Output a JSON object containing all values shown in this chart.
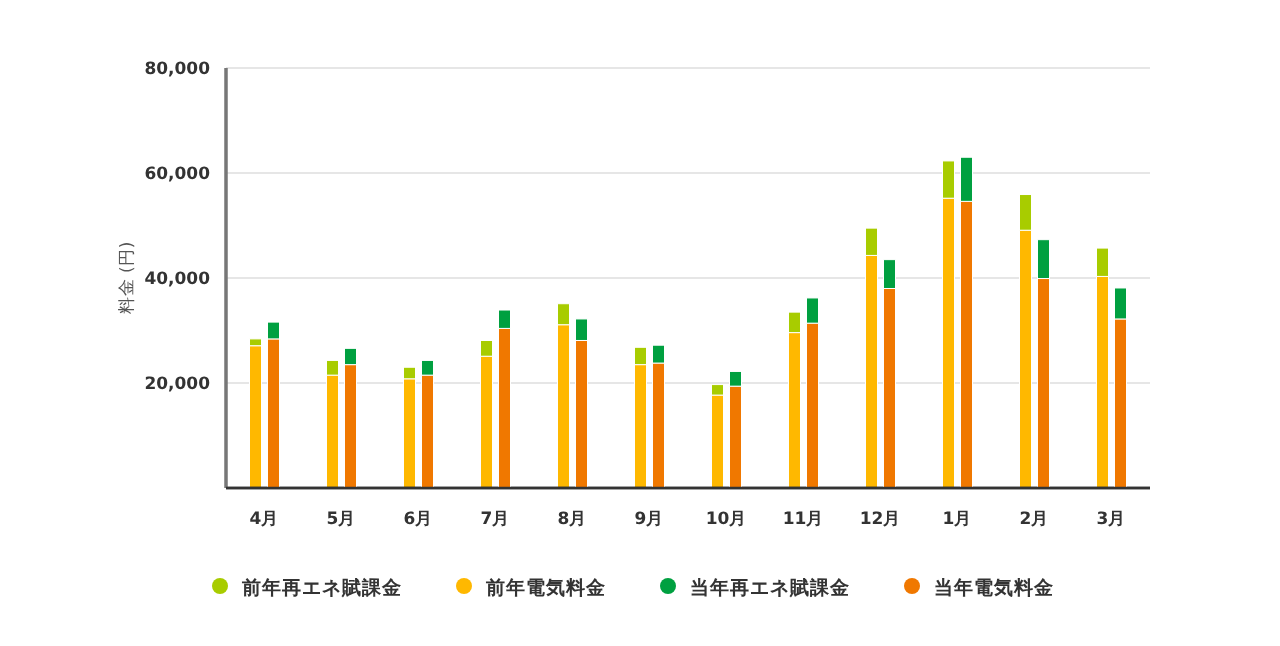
{
  "chart_data": [
    {
      "type": "bar",
      "stacked": true,
      "ylabel": "料金 (円)",
      "categories": [
        "4月",
        "5月",
        "6月",
        "7月",
        "8月",
        "9月",
        "10月",
        "11月",
        "12月",
        "1月",
        "2月",
        "3月"
      ],
      "series": [
        {
          "name": "前年電気料金",
          "color": "#ffb800",
          "values": [
            27100,
            21500,
            20800,
            25100,
            31100,
            23500,
            17700,
            29600,
            44300,
            55200,
            49100,
            40300
          ]
        },
        {
          "name": "前年再エネ賦課金",
          "color": "#a8cc00",
          "values": [
            1300,
            2800,
            2200,
            3000,
            4000,
            3300,
            2000,
            3900,
            5200,
            7100,
            6800,
            5400
          ]
        }
      ],
      "ylim": [
        0,
        80000
      ],
      "yticks": [
        {
          "value": 20000,
          "label": "20,000"
        },
        {
          "value": 40000,
          "label": "40,000"
        },
        {
          "value": 60000,
          "label": "60,000"
        },
        {
          "value": 80000,
          "label": "80,000"
        }
      ],
      "grid": "y",
      "legend": "bottom"
    },
    {
      "type": "bar",
      "stacked": true,
      "categories": [
        null,
        null,
        null,
        null,
        null,
        null,
        null,
        null,
        null,
        null,
        null,
        null
      ],
      "series": [
        {
          "name": "当年電気料金",
          "color": "#f07800",
          "values": [
            28400,
            23500,
            21500,
            30400,
            28100,
            23800,
            19400,
            31400,
            38000,
            54600,
            39900,
            32200
          ]
        },
        {
          "name": "当年再エネ賦課金",
          "color": "#00a040",
          "values": [
            3200,
            3100,
            2800,
            3500,
            4100,
            3400,
            2800,
            4800,
            5500,
            8400,
            7400,
            5900
          ]
        }
      ],
      "ylim": [
        0,
        80000
      ],
      "tick_labels": false,
      "legend": "bottom"
    }
  ]
}
